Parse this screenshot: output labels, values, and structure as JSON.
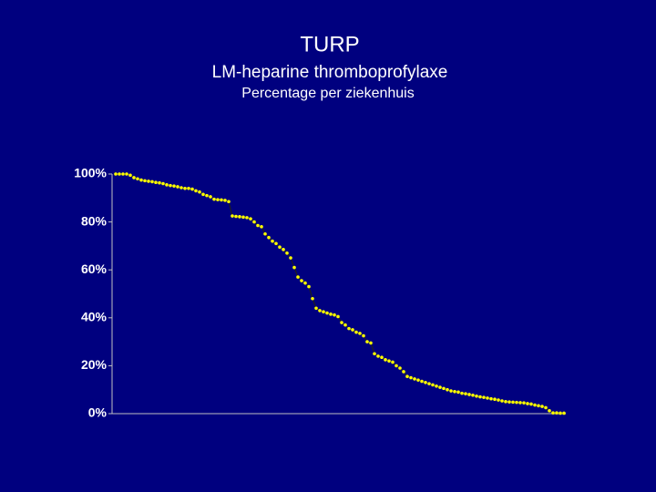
{
  "chart_data": {
    "type": "line",
    "title": "TURP",
    "subtitle": "LM-heparine thromboprofylaxe",
    "y_label": "Percentage per ziekenhuis",
    "categories": [
      null,
      null,
      null,
      null,
      null,
      null,
      null,
      null,
      null,
      null,
      null,
      null,
      null,
      null,
      null,
      null,
      null,
      null,
      null,
      null,
      null,
      null,
      null,
      null,
      null,
      null,
      null,
      null,
      null,
      null,
      null,
      null,
      null,
      null,
      null,
      null,
      null,
      null,
      null,
      null,
      null,
      null,
      null,
      null,
      null,
      null,
      null,
      null,
      null,
      null,
      null,
      null,
      null,
      null,
      null,
      null,
      null,
      null,
      null,
      null,
      null,
      null,
      null,
      null,
      null,
      null,
      null,
      null,
      null,
      null,
      null,
      null,
      null,
      null,
      null,
      null,
      null,
      null,
      null,
      null,
      null,
      null,
      null,
      null,
      null,
      null,
      null,
      null,
      null,
      null,
      null,
      null,
      null,
      null,
      null,
      null,
      null,
      null,
      null,
      null,
      null,
      null,
      null,
      null,
      null,
      null,
      null,
      null,
      null,
      null,
      null,
      null,
      null,
      null,
      null,
      null,
      null,
      null,
      null,
      null,
      null,
      null,
      null,
      null
    ],
    "series": [
      {
        "color": "#ffff00",
        "values": [
          100,
          100,
          100,
          100,
          99.5,
          98.5,
          98,
          97.5,
          97.2,
          97,
          96.8,
          96.5,
          96.3,
          96,
          95.5,
          95.2,
          95,
          94.7,
          94.3,
          94,
          94,
          93.7,
          93,
          92.5,
          91.5,
          91,
          90.5,
          89.5,
          89.3,
          89.2,
          89,
          88.5,
          82.5,
          82.3,
          82.2,
          82,
          81.8,
          81.3,
          80,
          78.5,
          78,
          75,
          73.5,
          72,
          71,
          69.5,
          68.5,
          67,
          65,
          61,
          57,
          55.5,
          54.5,
          53,
          48,
          44,
          43,
          42.5,
          42,
          41.5,
          41.2,
          40.5,
          38,
          37,
          35.5,
          35,
          34,
          33.5,
          32.5,
          30,
          29.5,
          25,
          24,
          23.5,
          22.5,
          22,
          21.5,
          20,
          19,
          17.5,
          15.5,
          15,
          14.5,
          14,
          13.5,
          13,
          12.5,
          12,
          11.5,
          11,
          10.5,
          10,
          9.5,
          9.2,
          9,
          8.5,
          8.3,
          8,
          7.7,
          7.3,
          7,
          6.8,
          6.5,
          6.2,
          6,
          5.7,
          5.3,
          5,
          4.9,
          4.8,
          4.7,
          4.6,
          4.5,
          4.2,
          4,
          3.6,
          3.3,
          3,
          2.5,
          1.2,
          0.3,
          0.3,
          0.2,
          0.2
        ]
      }
    ],
    "ylim": [
      0,
      100
    ],
    "yticks": [
      {
        "value": 0,
        "label": "0%"
      },
      {
        "value": 20,
        "label": "20%"
      },
      {
        "value": 40,
        "label": "40%"
      },
      {
        "value": 60,
        "label": "60%"
      },
      {
        "value": 80,
        "label": "80%"
      },
      {
        "value": 100,
        "label": "100%"
      }
    ]
  }
}
